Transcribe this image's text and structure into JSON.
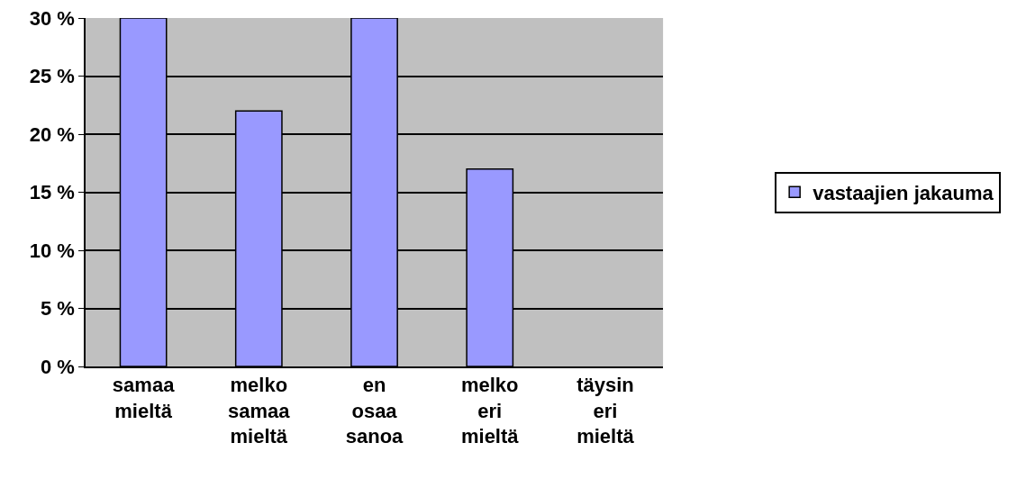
{
  "chart_data": {
    "type": "bar",
    "categories": [
      "samaa mieltä",
      "melko samaa mieltä",
      "en osaa sanoa",
      "melko eri mieltä",
      "täysin eri mieltä"
    ],
    "series": [
      {
        "name": "vastaajien jakauma",
        "color": "#9999ff",
        "values": [
          30,
          22,
          30,
          17,
          0
        ]
      }
    ],
    "ylim": [
      0,
      30
    ],
    "yticks": [
      {
        "value": 0,
        "label": "0 %"
      },
      {
        "value": 5,
        "label": "5 %"
      },
      {
        "value": 10,
        "label": "10 %"
      },
      {
        "value": 15,
        "label": "15 %"
      },
      {
        "value": 20,
        "label": "20 %"
      },
      {
        "value": 25,
        "label": "25 %"
      },
      {
        "value": 30,
        "label": "30 %"
      }
    ],
    "grid": "y",
    "legend": "right"
  }
}
